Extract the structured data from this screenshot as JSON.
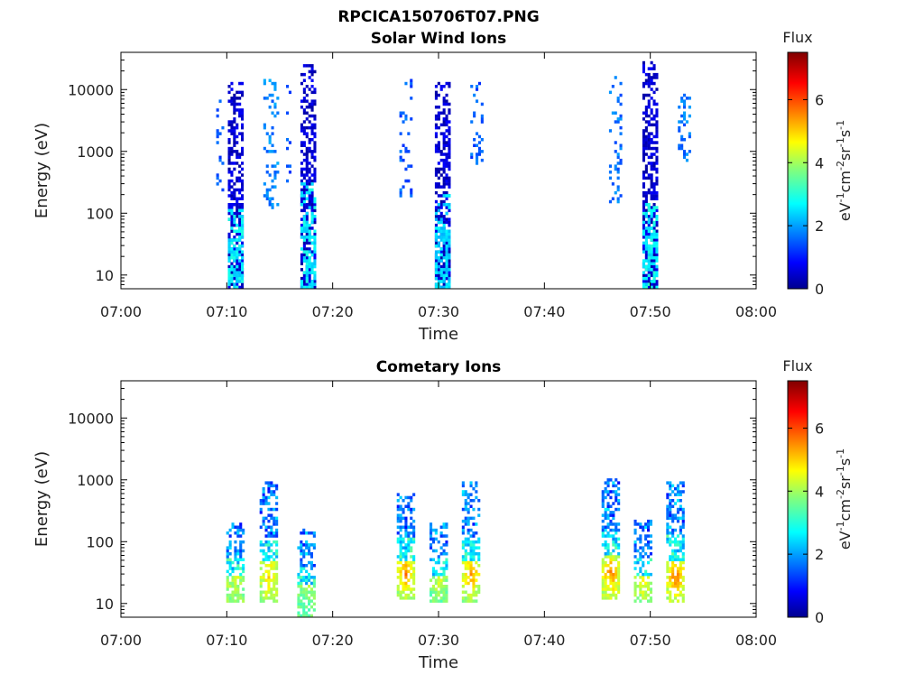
{
  "figure": {
    "title": "RPCICA150706T07.PNG"
  },
  "chart_data": [
    {
      "type": "heatmap",
      "title": "Solar Wind Ions",
      "xlabel": "Time",
      "ylabel": "Energy (eV)",
      "x_ticks": [
        "07:00",
        "07:10",
        "07:20",
        "07:30",
        "07:40",
        "07:50",
        "08:00"
      ],
      "x_range_minutes": [
        0,
        60
      ],
      "y_scale": "log",
      "y_ticks": [
        "10",
        "100",
        "1000",
        "10000"
      ],
      "y_range": [
        6,
        40000
      ],
      "colorbar": {
        "label": "Flux",
        "unit_label": "eV-1cm-2sr-1s-1",
        "ticks": [
          "0",
          "2",
          "4",
          "6"
        ],
        "range": [
          0,
          7.5
        ],
        "colormap": "jet"
      },
      "bursts": [
        {
          "t": 9.3,
          "e_min": 200,
          "e_max": 7000,
          "flux": 1.6,
          "density": 0.18,
          "width": 0.6
        },
        {
          "t": 10.8,
          "e_min": 6,
          "e_max": 15000,
          "flux": 0.6,
          "density": 0.75,
          "width": 1.4
        },
        {
          "t": 10.8,
          "e_min": 6,
          "e_max": 120,
          "flux": 2.7,
          "density": 0.65,
          "width": 1.4
        },
        {
          "t": 14.1,
          "e_min": 120,
          "e_max": 16000,
          "flux": 1.9,
          "density": 0.3,
          "width": 1.3
        },
        {
          "t": 15.8,
          "e_min": 200,
          "e_max": 15000,
          "flux": 1.5,
          "density": 0.12,
          "width": 0.4
        },
        {
          "t": 17.6,
          "e_min": 6,
          "e_max": 25000,
          "flux": 0.6,
          "density": 0.75,
          "width": 1.3
        },
        {
          "t": 17.6,
          "e_min": 6,
          "e_max": 300,
          "flux": 2.7,
          "density": 0.65,
          "width": 1.3
        },
        {
          "t": 26.9,
          "e_min": 180,
          "e_max": 16000,
          "flux": 1.6,
          "density": 0.22,
          "width": 1.2
        },
        {
          "t": 30.3,
          "e_min": 6,
          "e_max": 14000,
          "flux": 0.6,
          "density": 0.75,
          "width": 1.3
        },
        {
          "t": 30.3,
          "e_min": 6,
          "e_max": 200,
          "flux": 2.5,
          "density": 0.6,
          "width": 1.3
        },
        {
          "t": 33.5,
          "e_min": 600,
          "e_max": 14000,
          "flux": 1.6,
          "density": 0.3,
          "width": 1.0
        },
        {
          "t": 46.7,
          "e_min": 150,
          "e_max": 17000,
          "flux": 1.8,
          "density": 0.3,
          "width": 1.2
        },
        {
          "t": 49.9,
          "e_min": 6,
          "e_max": 28000,
          "flux": 0.6,
          "density": 0.75,
          "width": 1.3
        },
        {
          "t": 49.9,
          "e_min": 6,
          "e_max": 150,
          "flux": 2.8,
          "density": 0.65,
          "width": 1.3
        },
        {
          "t": 53.2,
          "e_min": 700,
          "e_max": 9000,
          "flux": 1.8,
          "density": 0.4,
          "width": 1.2
        }
      ]
    },
    {
      "type": "heatmap",
      "title": "Cometary Ions",
      "xlabel": "Time",
      "ylabel": "Energy (eV)",
      "x_ticks": [
        "07:00",
        "07:10",
        "07:20",
        "07:30",
        "07:40",
        "07:50",
        "08:00"
      ],
      "x_range_minutes": [
        0,
        60
      ],
      "y_scale": "log",
      "y_ticks": [
        "10",
        "100",
        "1000",
        "10000"
      ],
      "y_range": [
        6,
        40000
      ],
      "colorbar": {
        "label": "Flux",
        "unit_label": "eV-1cm-2sr-1s-1",
        "ticks": [
          "0",
          "2",
          "4",
          "6"
        ],
        "range": [
          0,
          7.5
        ],
        "colormap": "jet"
      },
      "bursts": [
        {
          "t": 10.7,
          "e_min": 10,
          "e_max": 200,
          "flux": 3.8,
          "peak_e": 25,
          "peak_flux": 4.3,
          "density": 0.75,
          "width": 1.5
        },
        {
          "t": 13.9,
          "e_min": 10,
          "e_max": 900,
          "flux": 3.9,
          "peak_e": 28,
          "peak_flux": 5.0,
          "density": 0.75,
          "width": 1.6
        },
        {
          "t": 17.4,
          "e_min": 6,
          "e_max": 170,
          "flux": 3.6,
          "peak_e": 25,
          "peak_flux": 4.2,
          "density": 0.75,
          "width": 1.5
        },
        {
          "t": 26.8,
          "e_min": 12,
          "e_max": 700,
          "flux": 3.9,
          "peak_e": 30,
          "peak_flux": 5.6,
          "density": 0.75,
          "width": 1.5
        },
        {
          "t": 29.9,
          "e_min": 10,
          "e_max": 200,
          "flux": 3.6,
          "peak_e": 28,
          "peak_flux": 4.5,
          "density": 0.75,
          "width": 1.5
        },
        {
          "t": 33.0,
          "e_min": 10,
          "e_max": 900,
          "flux": 3.9,
          "peak_e": 30,
          "peak_flux": 5.5,
          "density": 0.75,
          "width": 1.6
        },
        {
          "t": 46.2,
          "e_min": 12,
          "e_max": 1100,
          "flux": 4.0,
          "peak_e": 30,
          "peak_flux": 5.6,
          "density": 0.75,
          "width": 1.6
        },
        {
          "t": 49.2,
          "e_min": 10,
          "e_max": 220,
          "flux": 3.7,
          "peak_e": 25,
          "peak_flux": 4.8,
          "density": 0.75,
          "width": 1.5
        },
        {
          "t": 52.3,
          "e_min": 10,
          "e_max": 1000,
          "flux": 4.0,
          "peak_e": 28,
          "peak_flux": 5.8,
          "density": 0.75,
          "width": 1.6
        }
      ]
    }
  ]
}
